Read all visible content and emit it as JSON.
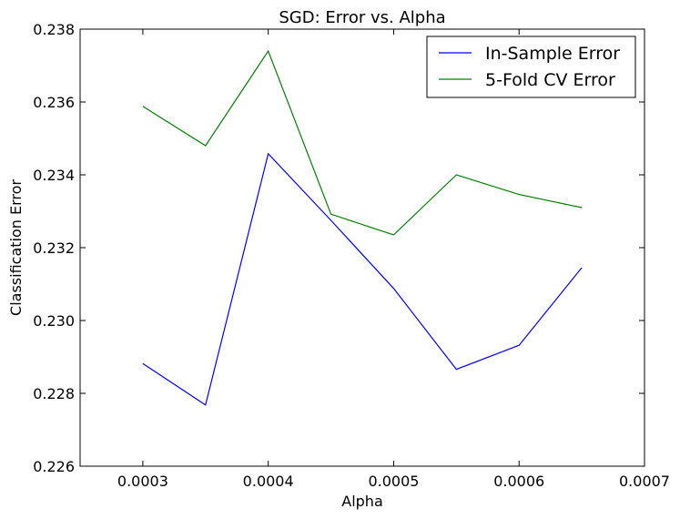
{
  "chart_data": {
    "type": "line",
    "title": "SGD: Error vs. Alpha",
    "xlabel": "Alpha",
    "ylabel": "Classification Error",
    "xlim": [
      0.00025,
      0.0007
    ],
    "ylim": [
      0.226,
      0.238
    ],
    "xticks": [
      "0.0003",
      "0.0004",
      "0.0005",
      "0.0006",
      "0.0007"
    ],
    "yticks": [
      "0.226",
      "0.228",
      "0.230",
      "0.232",
      "0.234",
      "0.236",
      "0.238"
    ],
    "grid": false,
    "legend_position": "top-right",
    "x": [
      0.0003,
      0.00035,
      0.0004,
      0.00045,
      0.0005,
      0.00055,
      0.0006,
      0.00065
    ],
    "series": [
      {
        "name": "In-Sample Error",
        "color": "#0000ff",
        "values": [
          0.22882,
          0.22768,
          0.23458,
          0.23275,
          0.23088,
          0.22866,
          0.22932,
          0.23145
        ]
      },
      {
        "name": "5-Fold CV Error",
        "color": "#008000",
        "values": [
          0.23588,
          0.2348,
          0.2374,
          0.23292,
          0.23235,
          0.234,
          0.23346,
          0.2331
        ]
      }
    ]
  }
}
